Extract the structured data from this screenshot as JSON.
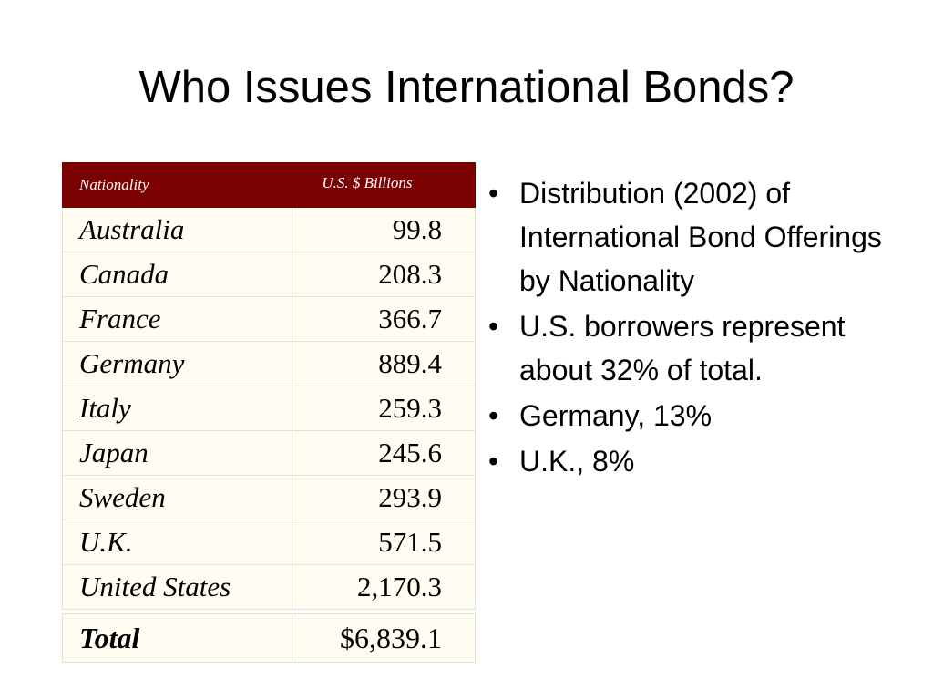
{
  "title": "Who Issues International Bonds?",
  "table": {
    "headers": [
      "Nationality",
      "U.S. $ Billions"
    ],
    "rows": [
      {
        "nation": "Australia",
        "value": "99.8"
      },
      {
        "nation": "Canada",
        "value": "208.3"
      },
      {
        "nation": "France",
        "value": "366.7"
      },
      {
        "nation": "Germany",
        "value": "889.4"
      },
      {
        "nation": "Italy",
        "value": "259.3"
      },
      {
        "nation": "Japan",
        "value": "245.6"
      },
      {
        "nation": "Sweden",
        "value": "293.9"
      },
      {
        "nation": "U.K.",
        "value": "571.5"
      },
      {
        "nation": "United States",
        "value": "2,170.3"
      }
    ],
    "total": {
      "label": "Total",
      "value": "$6,839.1"
    }
  },
  "bullets": [
    "Distribution (2002) of International Bond Offerings by Nationality",
    "U.S. borrowers represent about 32% of total.",
    "Germany, 13%",
    "U.K., 8%"
  ],
  "colors": {
    "header_bg": "#7b0000",
    "cell_bg": "#fffdf2"
  }
}
